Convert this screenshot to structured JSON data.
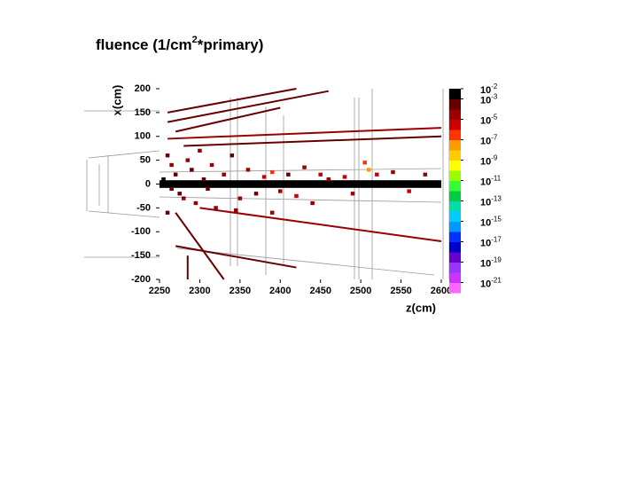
{
  "chart_data": {
    "type": "heatmap",
    "title_parts": [
      "fluence (1/cm",
      "2",
      "*primary)"
    ],
    "xlabel": "z(cm)",
    "ylabel": "x(cm)",
    "xlim": [
      2250,
      2600
    ],
    "xticks": [
      2250,
      2300,
      2350,
      2400,
      2450,
      2500,
      2550,
      2600
    ],
    "ylim": [
      -200,
      200
    ],
    "yticks": [
      -200,
      -150,
      -100,
      -50,
      0,
      50,
      100,
      150,
      200
    ],
    "zlim": [
      1e-22,
      0.01
    ],
    "zscale": "log",
    "colorscale": [
      "#ff66ff",
      "#cc33ff",
      "#9933ff",
      "#6600cc",
      "#0000cc",
      "#0033ff",
      "#0099ff",
      "#00ccff",
      "#00ddaa",
      "#00cc44",
      "#33ff33",
      "#99ff00",
      "#ffff00",
      "#ffcc00",
      "#ff9900",
      "#ff3300",
      "#cc0000",
      "#990000",
      "#660000",
      "#000000"
    ],
    "zticks": [
      {
        "value": 0.01,
        "label": "10",
        "exponent": "-2"
      },
      {
        "value": 0.001,
        "label": "10",
        "exponent": "-3"
      },
      {
        "value": 1e-05,
        "label": "10",
        "exponent": "-5"
      },
      {
        "value": 1e-07,
        "label": "10",
        "exponent": "-7"
      },
      {
        "value": 1e-09,
        "label": "10",
        "exponent": "-9"
      },
      {
        "value": 1e-11,
        "label": "10",
        "exponent": "-11"
      },
      {
        "value": 1e-13,
        "label": "10",
        "exponent": "-13"
      },
      {
        "value": 1e-15,
        "label": "10",
        "exponent": "-15"
      },
      {
        "value": 1e-17,
        "label": "10",
        "exponent": "-17"
      },
      {
        "value": 1e-19,
        "label": "10",
        "exponent": "-19"
      },
      {
        "value": 1e-21,
        "label": "10",
        "exponent": "-21"
      }
    ],
    "band": {
      "z": [
        2250,
        2600
      ],
      "x": [
        -8,
        8
      ],
      "value": 0.001
    },
    "tracks": [
      {
        "z": [
          2260,
          2420
        ],
        "x": [
          150,
          200
        ],
        "value": 0.0001
      },
      {
        "z": [
          2260,
          2460
        ],
        "x": [
          130,
          195
        ],
        "value": 0.0001
      },
      {
        "z": [
          2270,
          2400
        ],
        "x": [
          110,
          160
        ],
        "value": 0.0001
      },
      {
        "z": [
          2260,
          2600
        ],
        "x": [
          95,
          118
        ],
        "value": 1e-05
      },
      {
        "z": [
          2280,
          2600
        ],
        "x": [
          80,
          100
        ],
        "value": 0.0001
      },
      {
        "z": [
          2270,
          2330
        ],
        "x": [
          -60,
          -200
        ],
        "value": 0.0001
      },
      {
        "z": [
          2300,
          2600
        ],
        "x": [
          -50,
          -120
        ],
        "value": 1e-05
      },
      {
        "z": [
          2270,
          2420
        ],
        "x": [
          -130,
          -175
        ],
        "value": 0.0001
      },
      {
        "z": [
          2285,
          2285
        ],
        "x": [
          -150,
          -200
        ],
        "value": 0.0001
      }
    ],
    "cells": {
      "z": [
        2260,
        2265,
        2270,
        2275,
        2280,
        2285,
        2290,
        2295,
        2300,
        2305,
        2310,
        2315,
        2320,
        2330,
        2340,
        2350,
        2360,
        2370,
        2380,
        2390,
        2400,
        2410,
        2420,
        2430,
        2440,
        2450,
        2460,
        2480,
        2490,
        2505,
        2510,
        2520,
        2540,
        2560,
        2580,
        2345,
        2390,
        2260,
        2255,
        2265
      ],
      "x": [
        60,
        40,
        20,
        -20,
        -30,
        50,
        30,
        -40,
        70,
        10,
        -10,
        40,
        -50,
        20,
        60,
        -30,
        30,
        -20,
        15,
        25,
        -15,
        20,
        -25,
        35,
        -40,
        20,
        10,
        15,
        -20,
        45,
        30,
        20,
        25,
        -15,
        20,
        -55,
        -60,
        -60,
        10,
        -10
      ],
      "values": [
        0.0001,
        1e-05,
        0.0001,
        0.0001,
        1e-05,
        1e-05,
        0.0001,
        1e-05,
        1e-05,
        0.0001,
        0.0001,
        1e-05,
        1e-05,
        1e-05,
        0.0001,
        1e-05,
        1e-05,
        0.0001,
        1e-06,
        1e-07,
        1e-05,
        0.0001,
        1e-06,
        1e-05,
        1e-05,
        1e-06,
        1e-05,
        1e-06,
        1e-05,
        1e-07,
        1e-08,
        1e-06,
        1e-05,
        1e-06,
        1e-05,
        1e-05,
        1e-05,
        0.0001,
        0.001,
        0.0001
      ]
    }
  }
}
